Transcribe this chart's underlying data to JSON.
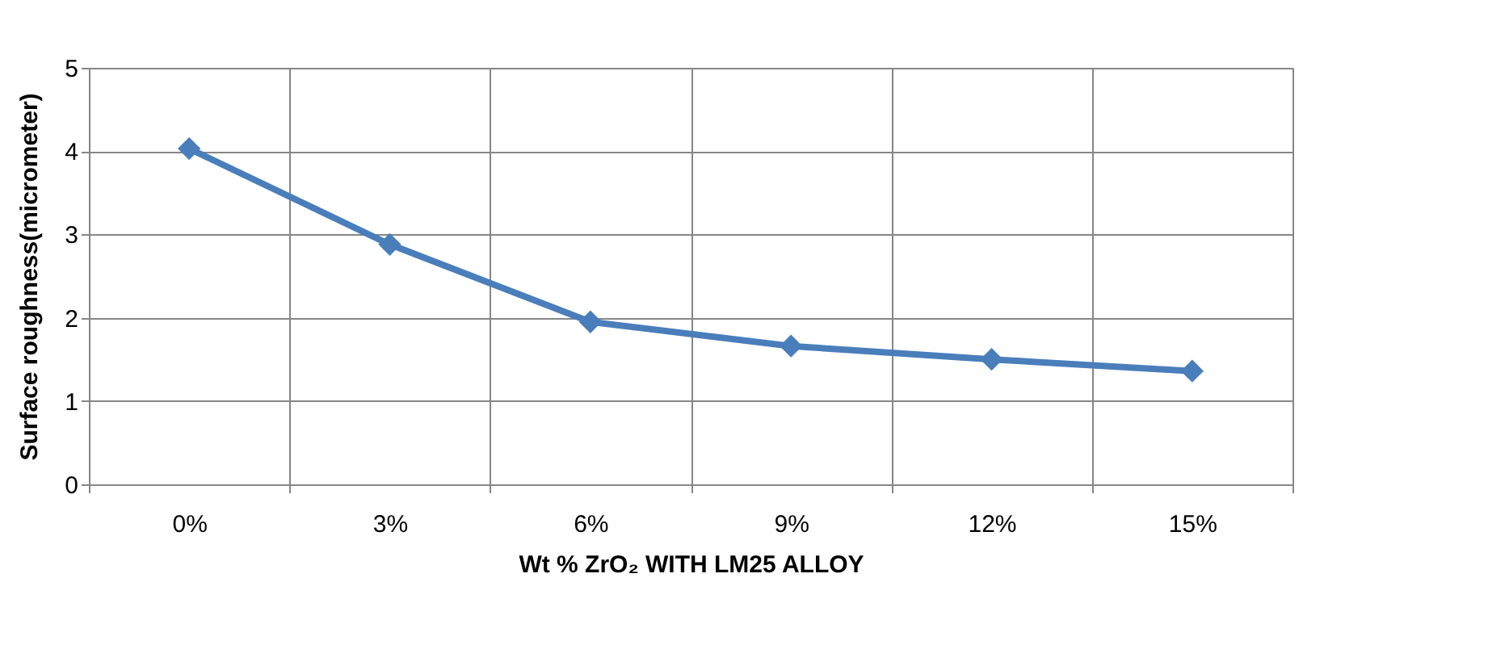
{
  "chart_data": {
    "type": "line",
    "xlabel": "Wt % ZrO₂ WITH LM25 ALLOY",
    "ylabel": "Surface roughness(micrometer)",
    "categories": [
      "0%",
      "3%",
      "6%",
      "9%",
      "12%",
      "15%"
    ],
    "series": [
      {
        "color": "#4a7ebb",
        "values": [
          4.03,
          2.88,
          1.95,
          1.66,
          1.5,
          1.36
        ]
      }
    ],
    "ylim": [
      0,
      5
    ],
    "yticks": [
      0,
      1,
      2,
      3,
      4,
      5
    ],
    "grid": true,
    "legend": false,
    "marker": "diamond",
    "line_style": "solid"
  }
}
